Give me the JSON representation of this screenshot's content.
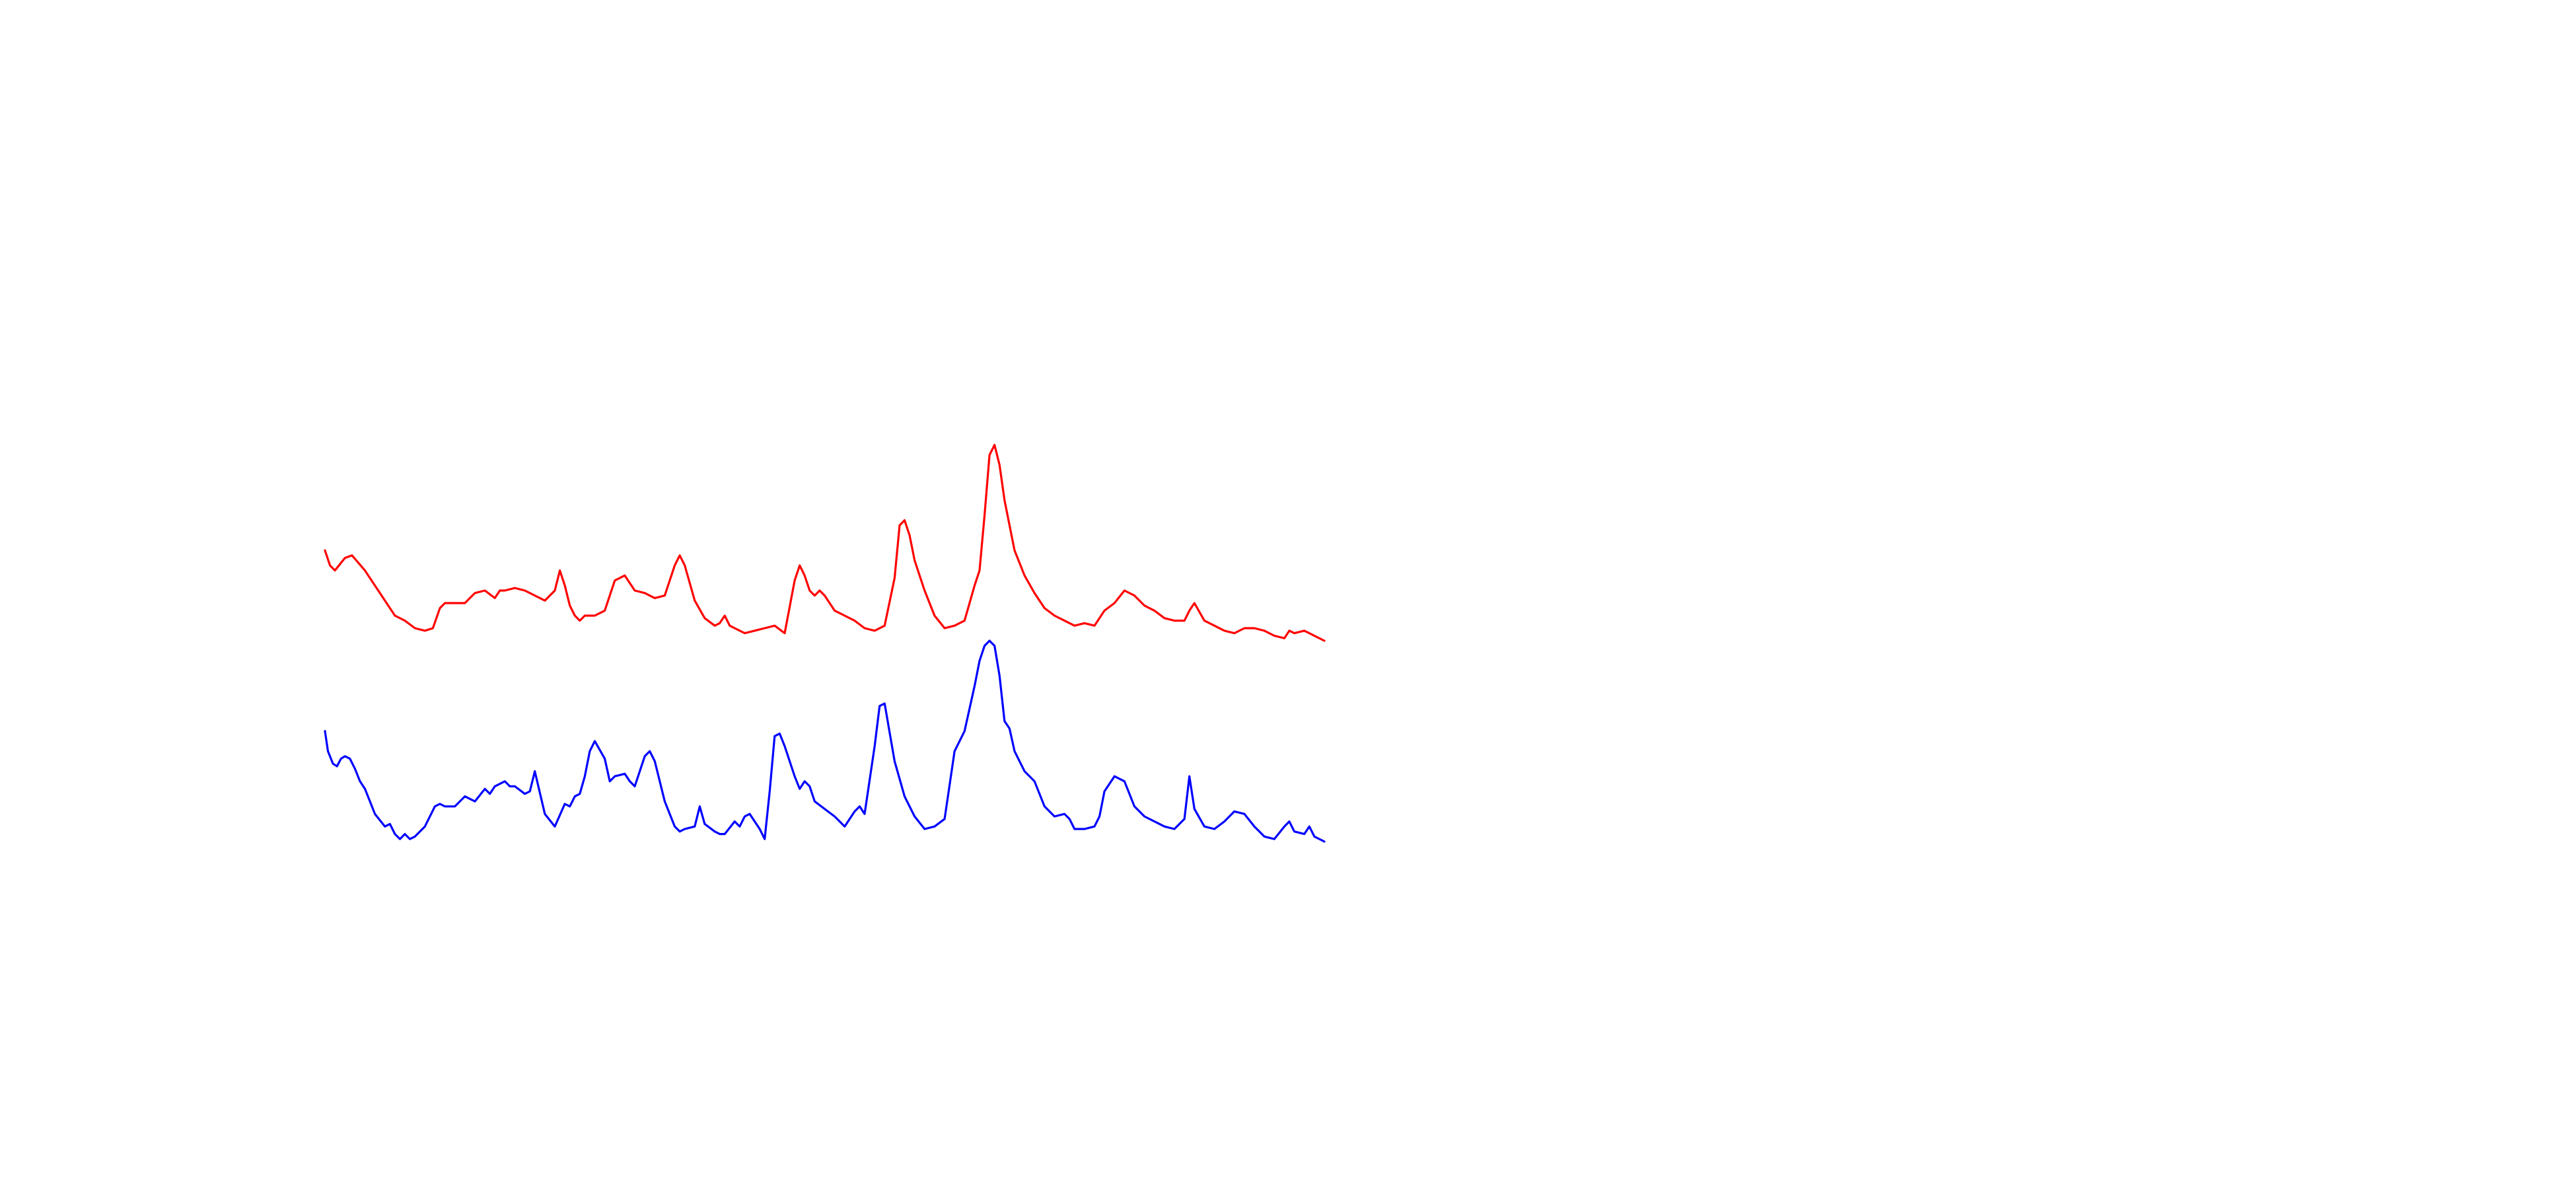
{
  "chart_data": {
    "type": "line",
    "axes_visible": false,
    "grid": false,
    "legend": "none",
    "xlim": [
      0,
      100
    ],
    "series": [
      {
        "color": "#ff0000",
        "points": [
          [
            0,
            18.6
          ],
          [
            0.5,
            18.0
          ],
          [
            1,
            17.8
          ],
          [
            2,
            18.3
          ],
          [
            2.7,
            18.4
          ],
          [
            4,
            17.8
          ],
          [
            5,
            17.2
          ],
          [
            6,
            16.6
          ],
          [
            7,
            16.0
          ],
          [
            8,
            15.8
          ],
          [
            9,
            15.5
          ],
          [
            10,
            15.4
          ],
          [
            10.8,
            15.5
          ],
          [
            11.5,
            16.3
          ],
          [
            12,
            16.5
          ],
          [
            14,
            16.5
          ],
          [
            15,
            16.9
          ],
          [
            16,
            17.0
          ],
          [
            17,
            16.7
          ],
          [
            17.5,
            17.0
          ],
          [
            18,
            17.0
          ],
          [
            19,
            17.1
          ],
          [
            20,
            17.0
          ],
          [
            21,
            16.8
          ],
          [
            22,
            16.6
          ],
          [
            23,
            17.0
          ],
          [
            23.5,
            17.8
          ],
          [
            24,
            17.2
          ],
          [
            24.5,
            16.4
          ],
          [
            25,
            16.0
          ],
          [
            25.5,
            15.8
          ],
          [
            26,
            16.0
          ],
          [
            27,
            16.0
          ],
          [
            28,
            16.2
          ],
          [
            29,
            17.4
          ],
          [
            30,
            17.6
          ],
          [
            31,
            17.0
          ],
          [
            32,
            16.9
          ],
          [
            33,
            16.7
          ],
          [
            34,
            16.8
          ],
          [
            35,
            18.0
          ],
          [
            35.5,
            18.4
          ],
          [
            36,
            18.0
          ],
          [
            37,
            16.6
          ],
          [
            38,
            15.9
          ],
          [
            39,
            15.6
          ],
          [
            39.5,
            15.7
          ],
          [
            40,
            16.0
          ],
          [
            40.5,
            15.6
          ],
          [
            41,
            15.5
          ],
          [
            42,
            15.3
          ],
          [
            43,
            15.4
          ],
          [
            44,
            15.5
          ],
          [
            45,
            15.6
          ],
          [
            46,
            15.3
          ],
          [
            47,
            17.4
          ],
          [
            47.5,
            18.0
          ],
          [
            48,
            17.6
          ],
          [
            48.5,
            17.0
          ],
          [
            49,
            16.8
          ],
          [
            49.5,
            17.0
          ],
          [
            50,
            16.8
          ],
          [
            51,
            16.2
          ],
          [
            52,
            16.0
          ],
          [
            53,
            15.8
          ],
          [
            54,
            15.5
          ],
          [
            55,
            15.4
          ],
          [
            56,
            15.6
          ],
          [
            57,
            17.5
          ],
          [
            57.5,
            19.6
          ],
          [
            58,
            19.8
          ],
          [
            58.5,
            19.2
          ],
          [
            59,
            18.2
          ],
          [
            60,
            17.0
          ],
          [
            61,
            16.0
          ],
          [
            62,
            15.5
          ],
          [
            63,
            15.6
          ],
          [
            64,
            15.8
          ],
          [
            65,
            17.2
          ],
          [
            65.5,
            17.8
          ],
          [
            66,
            20.0
          ],
          [
            66.5,
            22.4
          ],
          [
            67,
            22.8
          ],
          [
            67.5,
            22.0
          ],
          [
            68,
            20.6
          ],
          [
            69,
            18.6
          ],
          [
            70,
            17.6
          ],
          [
            71,
            16.9
          ],
          [
            72,
            16.3
          ],
          [
            73,
            16.0
          ],
          [
            74,
            15.8
          ],
          [
            75,
            15.6
          ],
          [
            76,
            15.7
          ],
          [
            77,
            15.6
          ],
          [
            78,
            16.2
          ],
          [
            79,
            16.5
          ],
          [
            80,
            17.0
          ],
          [
            81,
            16.8
          ],
          [
            82,
            16.4
          ],
          [
            83,
            16.2
          ],
          [
            84,
            15.9
          ],
          [
            85,
            15.8
          ],
          [
            86,
            15.8
          ],
          [
            86.5,
            16.2
          ],
          [
            87,
            16.5
          ],
          [
            88,
            15.8
          ],
          [
            89,
            15.6
          ],
          [
            90,
            15.4
          ],
          [
            91,
            15.3
          ],
          [
            92,
            15.5
          ],
          [
            93,
            15.5
          ],
          [
            94,
            15.4
          ],
          [
            95,
            15.2
          ],
          [
            96,
            15.1
          ],
          [
            96.5,
            15.4
          ],
          [
            97,
            15.3
          ],
          [
            98,
            15.4
          ],
          [
            99,
            15.2
          ],
          [
            100,
            15.0
          ]
        ]
      },
      {
        "color": "#0000ff",
        "points": [
          [
            0,
            11.4
          ],
          [
            0.3,
            10.6
          ],
          [
            0.8,
            10.1
          ],
          [
            1.2,
            10.0
          ],
          [
            1.6,
            10.3
          ],
          [
            2,
            10.4
          ],
          [
            2.5,
            10.3
          ],
          [
            3,
            9.9
          ],
          [
            3.5,
            9.4
          ],
          [
            4,
            9.1
          ],
          [
            4.5,
            8.6
          ],
          [
            5,
            8.1
          ],
          [
            6,
            7.6
          ],
          [
            6.5,
            7.7
          ],
          [
            7,
            7.3
          ],
          [
            7.5,
            7.1
          ],
          [
            8,
            7.3
          ],
          [
            8.5,
            7.1
          ],
          [
            9,
            7.2
          ],
          [
            10,
            7.6
          ],
          [
            11,
            8.4
          ],
          [
            11.5,
            8.5
          ],
          [
            12,
            8.4
          ],
          [
            13,
            8.4
          ],
          [
            14,
            8.8
          ],
          [
            15,
            8.6
          ],
          [
            16,
            9.1
          ],
          [
            16.5,
            8.9
          ],
          [
            17,
            9.2
          ],
          [
            18,
            9.4
          ],
          [
            18.5,
            9.2
          ],
          [
            19,
            9.2
          ],
          [
            20,
            8.9
          ],
          [
            20.5,
            9.0
          ],
          [
            21,
            9.8
          ],
          [
            22,
            8.1
          ],
          [
            23,
            7.6
          ],
          [
            24,
            8.5
          ],
          [
            24.5,
            8.4
          ],
          [
            25,
            8.8
          ],
          [
            25.5,
            8.9
          ],
          [
            26,
            9.6
          ],
          [
            26.5,
            10.6
          ],
          [
            27,
            11.0
          ],
          [
            28,
            10.3
          ],
          [
            28.5,
            9.4
          ],
          [
            29,
            9.6
          ],
          [
            30,
            9.7
          ],
          [
            30.5,
            9.4
          ],
          [
            31,
            9.2
          ],
          [
            32,
            10.4
          ],
          [
            32.5,
            10.6
          ],
          [
            33,
            10.2
          ],
          [
            34,
            8.6
          ],
          [
            35,
            7.6
          ],
          [
            35.5,
            7.4
          ],
          [
            36,
            7.5
          ],
          [
            37,
            7.6
          ],
          [
            37.5,
            8.4
          ],
          [
            38,
            7.7
          ],
          [
            39,
            7.4
          ],
          [
            39.5,
            7.3
          ],
          [
            40,
            7.3
          ],
          [
            41,
            7.8
          ],
          [
            41.5,
            7.6
          ],
          [
            42,
            8.0
          ],
          [
            42.5,
            8.1
          ],
          [
            43,
            7.8
          ],
          [
            43.5,
            7.5
          ],
          [
            44,
            7.1
          ],
          [
            44.5,
            9.0
          ],
          [
            45,
            11.2
          ],
          [
            45.5,
            11.3
          ],
          [
            46,
            10.8
          ],
          [
            47,
            9.6
          ],
          [
            47.5,
            9.1
          ],
          [
            48,
            9.4
          ],
          [
            48.5,
            9.2
          ],
          [
            49,
            8.6
          ],
          [
            50,
            8.3
          ],
          [
            51,
            8.0
          ],
          [
            52,
            7.6
          ],
          [
            53,
            8.2
          ],
          [
            53.5,
            8.4
          ],
          [
            54,
            8.1
          ],
          [
            55,
            10.8
          ],
          [
            55.5,
            12.4
          ],
          [
            56,
            12.5
          ],
          [
            57,
            10.2
          ],
          [
            58,
            8.8
          ],
          [
            59,
            8.0
          ],
          [
            60,
            7.5
          ],
          [
            61,
            7.6
          ],
          [
            62,
            7.9
          ],
          [
            63,
            10.6
          ],
          [
            64,
            11.4
          ],
          [
            65,
            13.2
          ],
          [
            65.5,
            14.2
          ],
          [
            66,
            14.8
          ],
          [
            66.5,
            15.0
          ],
          [
            67,
            14.8
          ],
          [
            67.5,
            13.6
          ],
          [
            68,
            11.8
          ],
          [
            68.5,
            11.5
          ],
          [
            69,
            10.6
          ],
          [
            70,
            9.8
          ],
          [
            71,
            9.4
          ],
          [
            72,
            8.4
          ],
          [
            73,
            8.0
          ],
          [
            74,
            8.1
          ],
          [
            74.5,
            7.9
          ],
          [
            75,
            7.5
          ],
          [
            76,
            7.5
          ],
          [
            77,
            7.6
          ],
          [
            77.5,
            8.0
          ],
          [
            78,
            9.0
          ],
          [
            79,
            9.6
          ],
          [
            80,
            9.4
          ],
          [
            81,
            8.4
          ],
          [
            82,
            8.0
          ],
          [
            83,
            7.8
          ],
          [
            84,
            7.6
          ],
          [
            85,
            7.5
          ],
          [
            86,
            7.9
          ],
          [
            86.5,
            9.6
          ],
          [
            87,
            8.3
          ],
          [
            88,
            7.6
          ],
          [
            89,
            7.5
          ],
          [
            90,
            7.8
          ],
          [
            91,
            8.2
          ],
          [
            92,
            8.1
          ],
          [
            93,
            7.6
          ],
          [
            94,
            7.2
          ],
          [
            95,
            7.1
          ],
          [
            96,
            7.6
          ],
          [
            96.5,
            7.8
          ],
          [
            97,
            7.4
          ],
          [
            98,
            7.3
          ],
          [
            98.5,
            7.6
          ],
          [
            99,
            7.2
          ],
          [
            100,
            7.0
          ]
        ]
      }
    ]
  }
}
